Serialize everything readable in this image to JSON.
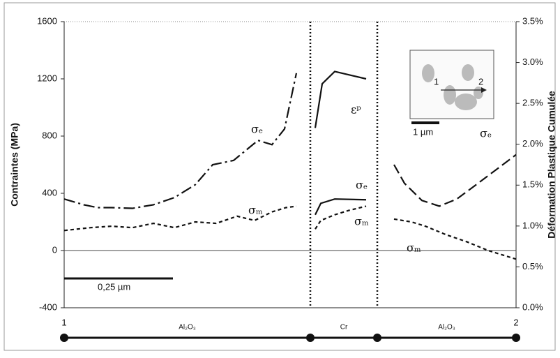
{
  "chart_data": {
    "type": "line",
    "y_label": "Contraintes (MPa)",
    "y2_label": "Déformation Plastique Cumulée",
    "xlim": [
      0,
      648
    ],
    "ylim": [
      -400,
      1600
    ],
    "yticks": [
      -400,
      0,
      400,
      800,
      1200,
      1600
    ],
    "y2lim": [
      0,
      3.5
    ],
    "y2ticks": [
      {
        "value": 0,
        "label": "0.0%"
      },
      {
        "value": 0.5,
        "label": "0.5%"
      },
      {
        "value": 1,
        "label": "1.0%"
      },
      {
        "value": 1.5,
        "label": "1.5%"
      },
      {
        "value": 2,
        "label": "2.0%"
      },
      {
        "value": 2.5,
        "label": "2.5%"
      },
      {
        "value": 3,
        "label": "3.0%"
      },
      {
        "value": 3.5,
        "label": "3.5%"
      }
    ],
    "boundaries": [
      353,
      449
    ],
    "series": [
      {
        "color": "#111111",
        "dash": "dashdot",
        "x": [
          0,
          28,
          48,
          68,
          98,
          128,
          158,
          188,
          213,
          243,
          278,
          298,
          316,
          333
        ],
        "values": [
          360,
          320,
          300,
          300,
          295,
          320,
          370,
          460,
          600,
          630,
          770,
          740,
          850,
          1240
        ]
      },
      {
        "color": "#111111",
        "dash": "dotted",
        "x": [
          0,
          38,
          68,
          98,
          128,
          158,
          188,
          218,
          248,
          273,
          298,
          318,
          333
        ],
        "values": [
          140,
          160,
          170,
          160,
          190,
          160,
          200,
          190,
          240,
          210,
          270,
          300,
          310
        ]
      },
      {
        "color": "#111111",
        "dash": "solid",
        "axis": "y2",
        "x": [
          360,
          370,
          388,
          433
        ],
        "values": [
          2.2,
          2.74,
          2.89,
          2.8
        ]
      },
      {
        "color": "#111111",
        "dash": "solid",
        "x": [
          360,
          368,
          388,
          433
        ],
        "values": [
          250,
          330,
          360,
          355
        ]
      },
      {
        "color": "#111111",
        "dash": "dotted",
        "x": [
          360,
          368,
          388,
          408,
          433
        ],
        "values": [
          150,
          210,
          250,
          280,
          310
        ]
      },
      {
        "color": "#111111",
        "dash": "dashed",
        "x": [
          473,
          488,
          513,
          538,
          563,
          588,
          618,
          648
        ],
        "values": [
          600,
          470,
          350,
          310,
          360,
          450,
          560,
          670
        ]
      },
      {
        "color": "#111111",
        "dash": "dotted",
        "x": [
          473,
          498,
          518,
          548,
          578,
          608,
          648
        ],
        "values": [
          220,
          200,
          170,
          110,
          60,
          0,
          -60
        ]
      }
    ],
    "annotations": [
      "σₑ",
      "σₘ",
      "εᵖ",
      "σₑ",
      "σₘ",
      "σₑ",
      "σₘ",
      "0,25 µm"
    ],
    "track": {
      "start_label": "1",
      "end_label": "2",
      "segments": [
        "Al₂O₃",
        "Cr",
        "Al₂O₃"
      ]
    },
    "inset": {
      "start_label": "1",
      "end_label": "2",
      "scale_label": "1 µm"
    }
  }
}
